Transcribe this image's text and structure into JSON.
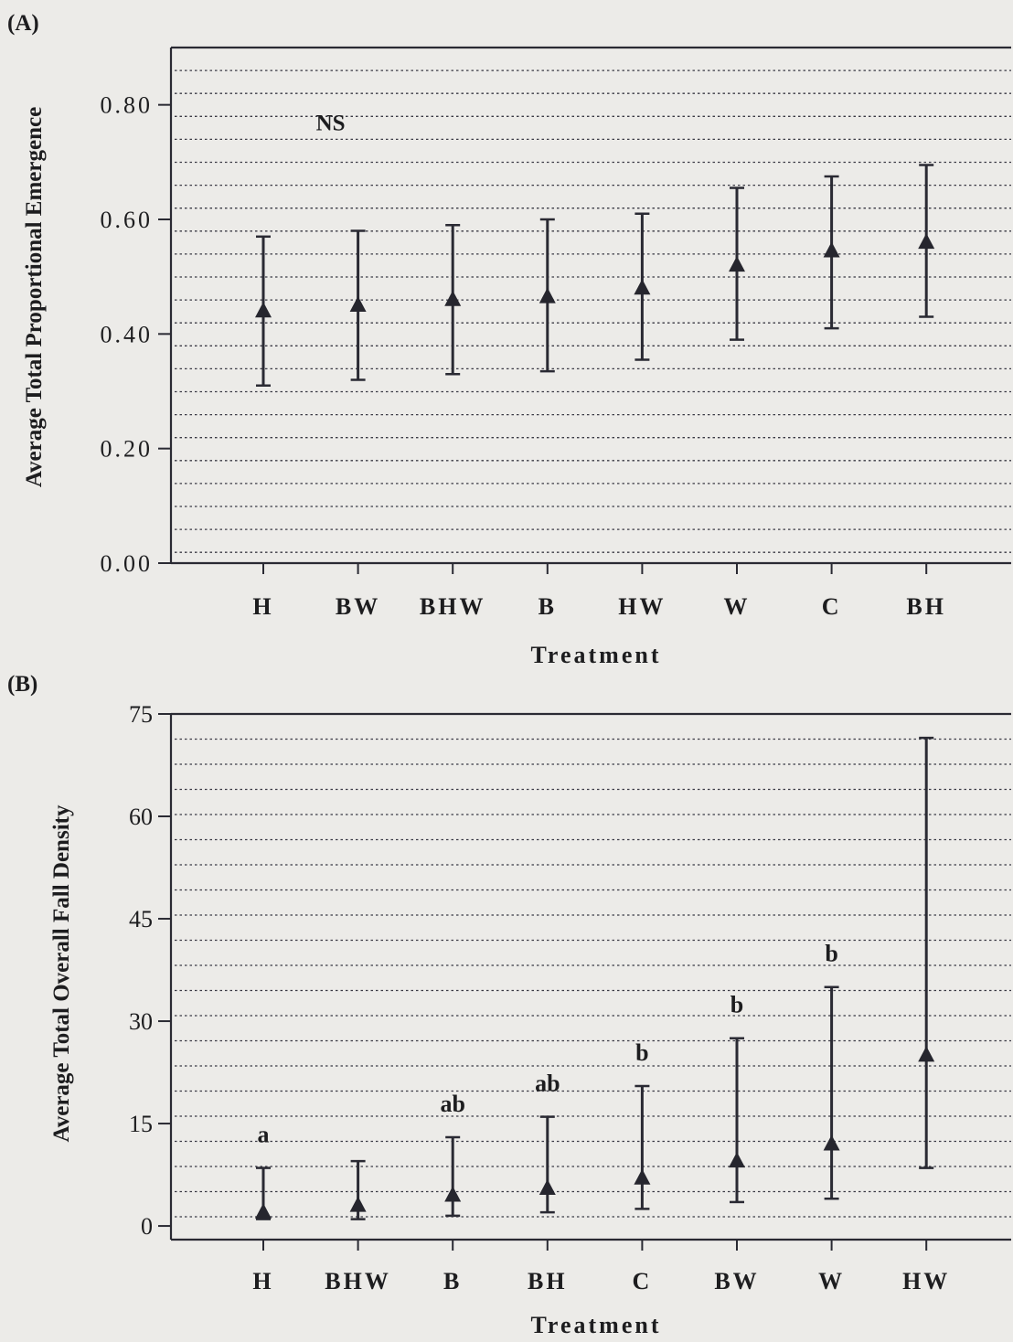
{
  "chart_data": [
    {
      "panel_label": "(A)",
      "type": "scatter",
      "ylabel": "Average Total Proportional Emergence",
      "xlabel": "Treatment",
      "ylim": [
        0,
        0.9
      ],
      "yticks": [
        "0.00",
        "0.20",
        "0.40",
        "0.60",
        "0.80"
      ],
      "grid": true,
      "categories": [
        "H",
        "BW",
        "BHW",
        "B",
        "HW",
        "W",
        "C",
        "BH"
      ],
      "values": [
        0.44,
        0.45,
        0.46,
        0.465,
        0.48,
        0.52,
        0.545,
        0.56
      ],
      "error_low": [
        0.31,
        0.32,
        0.33,
        0.335,
        0.355,
        0.39,
        0.41,
        0.43
      ],
      "error_high": [
        0.57,
        0.58,
        0.59,
        0.6,
        0.61,
        0.655,
        0.675,
        0.695
      ],
      "annotations": [
        {
          "text": "NS",
          "x": "BW",
          "y": 0.77
        }
      ]
    },
    {
      "panel_label": "(B)",
      "type": "scatter",
      "ylabel": "Average Total Overall Fall Density",
      "xlabel": "Treatment",
      "ylim": [
        -2,
        75
      ],
      "yticks": [
        "0",
        "15",
        "30",
        "45",
        "60",
        "75"
      ],
      "grid": true,
      "categories": [
        "H",
        "BHW",
        "B",
        "BH",
        "C",
        "BW",
        "W",
        "HW"
      ],
      "values": [
        2,
        3,
        4.5,
        5.5,
        7,
        9.5,
        12,
        25
      ],
      "error_low": [
        1,
        1,
        1.5,
        2,
        2.5,
        3.5,
        4,
        8.5
      ],
      "error_high": [
        8.5,
        9.5,
        13,
        16,
        20.5,
        27.5,
        35,
        71.5
      ],
      "letters": [
        "a",
        "",
        "ab",
        "ab",
        "b",
        "b",
        "b",
        ""
      ]
    }
  ]
}
